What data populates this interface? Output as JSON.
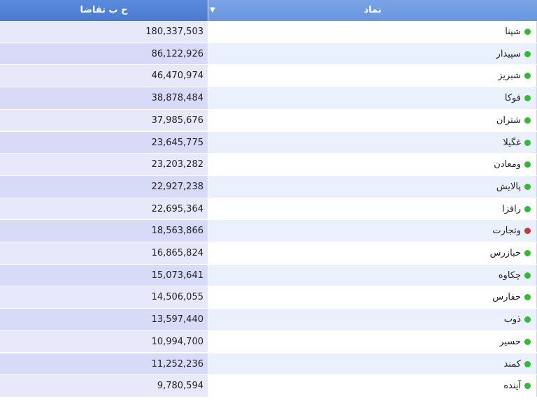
{
  "header": {
    "value_column": "ح ب تقاضا",
    "symbol_column": "نماد"
  },
  "table": {
    "rows": [
      {
        "symbol": "شپنا",
        "value": "180,337,503",
        "dot_color": "#2ebd2e"
      },
      {
        "symbol": "سپیدار",
        "value": "86,122,926",
        "dot_color": "#2ebd2e"
      },
      {
        "symbol": "شبریز",
        "value": "46,470,974",
        "dot_color": "#2ebd2e"
      },
      {
        "symbol": "فوکا",
        "value": "38,878,484",
        "dot_color": "#2ebd2e"
      },
      {
        "symbol": "شتران",
        "value": "37,985,676",
        "dot_color": "#2ebd2e"
      },
      {
        "symbol": "غگیلا",
        "value": "23,645,775",
        "dot_color": "#2ebd2e"
      },
      {
        "symbol": "ومعادن",
        "value": "23,203,282",
        "dot_color": "#2ebd2e"
      },
      {
        "symbol": "پالایش",
        "value": "22,927,238",
        "dot_color": "#2ebd2e"
      },
      {
        "symbol": "رافزا",
        "value": "22,695,364",
        "dot_color": "#2ebd2e"
      },
      {
        "symbol": "وتجارت",
        "value": "18,563,866",
        "dot_color": "#c0393b"
      },
      {
        "symbol": "خبازرس",
        "value": "16,865,824",
        "dot_color": "#2ebd2e"
      },
      {
        "symbol": "چکاوه",
        "value": "15,073,641",
        "dot_color": "#2ebd2e"
      },
      {
        "symbol": "حفارس",
        "value": "14,506,055",
        "dot_color": "#2ebd2e"
      },
      {
        "symbol": "ذوب",
        "value": "13,597,440",
        "dot_color": "#2ebd2e"
      },
      {
        "symbol": "حسیر",
        "value": "10,994,700",
        "dot_color": "#2ebd2e"
      },
      {
        "symbol": "کمند",
        "value": "11,252,236",
        "dot_color": "#2ebd2e"
      },
      {
        "symbol": "آینده",
        "value": "9,780,594",
        "dot_color": "#2ebd2e"
      }
    ]
  }
}
